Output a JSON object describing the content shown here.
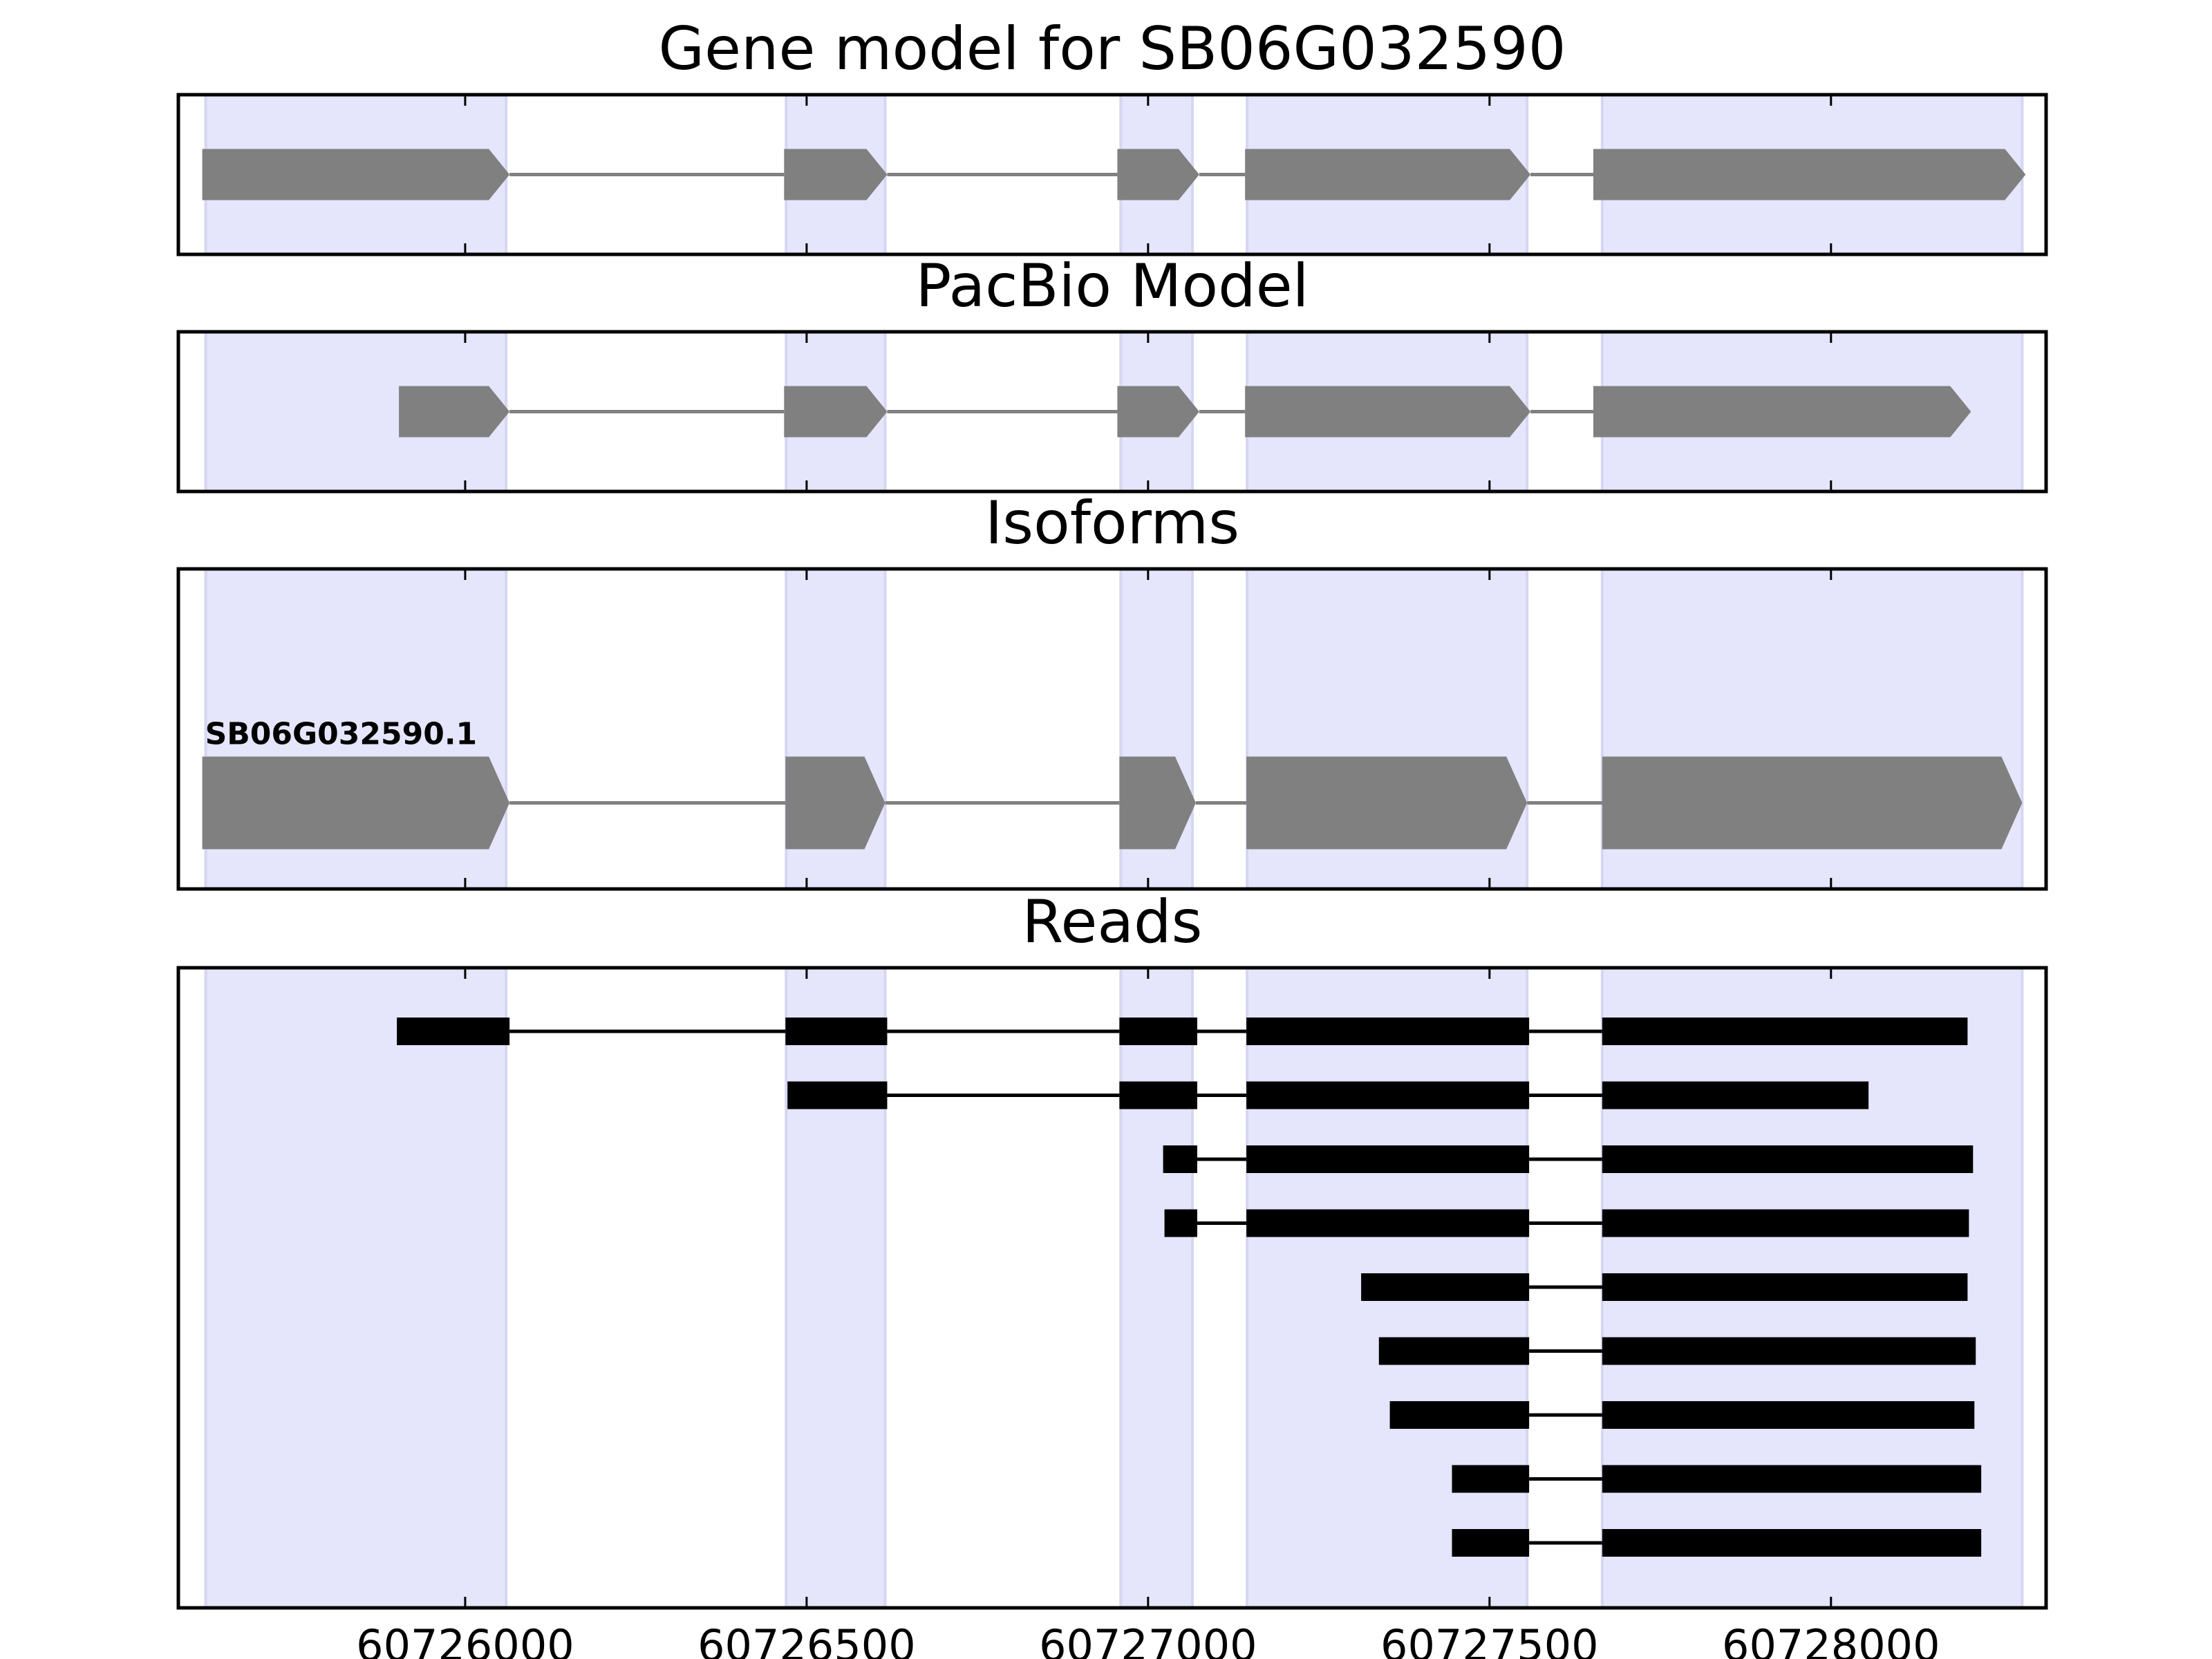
{
  "chart_data": {
    "type": "gene-model",
    "x_ticks": [
      60726000,
      60726500,
      60727000,
      60727500,
      60728000
    ],
    "x_tick_labels": [
      "60726000",
      "60726500",
      "60727000",
      "60727500",
      "60728000"
    ],
    "xlim": [
      60725580,
      60728315
    ],
    "exon_regions": [
      [
        60725620,
        60726060
      ],
      [
        60726470,
        60726615
      ],
      [
        60726960,
        60727065
      ],
      [
        60727145,
        60727555
      ],
      [
        60727665,
        60728280
      ]
    ],
    "panels": [
      {
        "title": "Gene model for SB06G032590",
        "kind": "model",
        "tracks": [
          {
            "label": "",
            "exons": [
              [
                60725615,
                60726065
              ],
              [
                60726467,
                60726618
              ],
              [
                60726955,
                60727075
              ],
              [
                60727142,
                60727560
              ],
              [
                60727652,
                60728285
              ]
            ]
          }
        ]
      },
      {
        "title": "PacBio Model",
        "kind": "model",
        "tracks": [
          {
            "label": "",
            "exons": [
              [
                60725903,
                60726065
              ],
              [
                60726467,
                60726618
              ],
              [
                60726955,
                60727075
              ],
              [
                60727142,
                60727560
              ],
              [
                60727652,
                60728205
              ]
            ]
          }
        ]
      },
      {
        "title": "Isoforms",
        "kind": "model",
        "tracks": [
          {
            "label": "SB06G032590.1",
            "exons": [
              [
                60725615,
                60726065
              ],
              [
                60726469,
                60726615
              ],
              [
                60726958,
                60727070
              ],
              [
                60727144,
                60727555
              ],
              [
                60727665,
                60728280
              ]
            ]
          }
        ]
      },
      {
        "title": "Reads",
        "kind": "reads",
        "tracks": [
          {
            "exons": [
              [
                60725900,
                60726065
              ],
              [
                60726469,
                60726618
              ],
              [
                60726958,
                60727072
              ],
              [
                60727144,
                60727558
              ],
              [
                60727665,
                60728200
              ]
            ]
          },
          {
            "exons": [
              [
                60726472,
                60726618
              ],
              [
                60726958,
                60727072
              ],
              [
                60727144,
                60727558
              ],
              [
                60727665,
                60728055
              ]
            ]
          },
          {
            "exons": [
              [
                60727022,
                60727072
              ],
              [
                60727144,
                60727558
              ],
              [
                60727665,
                60728208
              ]
            ]
          },
          {
            "exons": [
              [
                60727024,
                60727072
              ],
              [
                60727144,
                60727558
              ],
              [
                60727665,
                60728202
              ]
            ]
          },
          {
            "exons": [
              [
                60727312,
                60727558
              ],
              [
                60727665,
                60728200
              ]
            ]
          },
          {
            "exons": [
              [
                60727338,
                60727558
              ],
              [
                60727665,
                60728212
              ]
            ]
          },
          {
            "exons": [
              [
                60727354,
                60727558
              ],
              [
                60727665,
                60728210
              ]
            ]
          },
          {
            "exons": [
              [
                60727445,
                60727558
              ],
              [
                60727665,
                60728220
              ]
            ]
          },
          {
            "exons": [
              [
                60727445,
                60727558
              ],
              [
                60727665,
                60728220
              ]
            ]
          }
        ]
      }
    ]
  }
}
